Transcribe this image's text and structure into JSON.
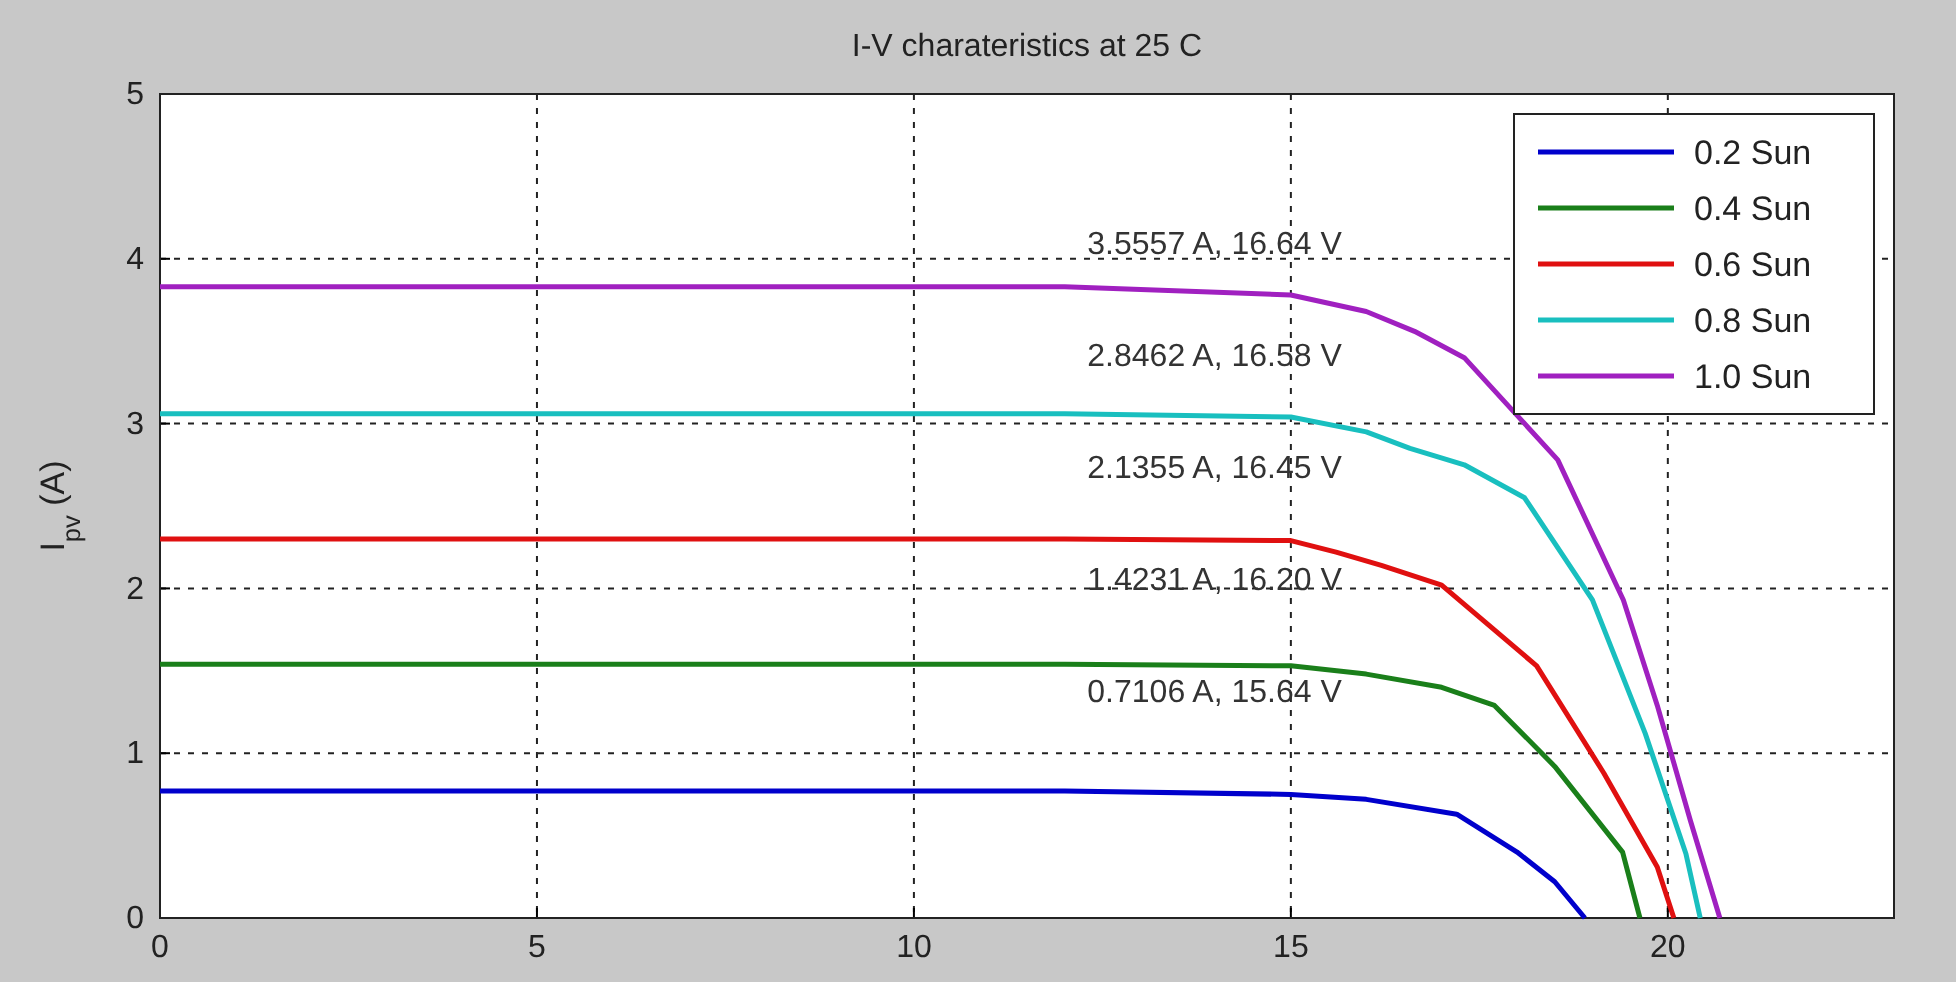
{
  "chart_data": {
    "type": "line",
    "title": "I-V charateristics at 25 C",
    "ylabel": "I$_{pv}$ (A)",
    "xlim": [
      0,
      23
    ],
    "xticks": [
      0,
      5,
      10,
      15,
      20
    ],
    "ylim": [
      0,
      5
    ],
    "yticks": [
      0,
      1,
      2,
      3,
      4,
      5
    ],
    "grid": true,
    "legend": "top right",
    "line_style": "solid",
    "marker": "none",
    "series": [
      {
        "name": "0.2 Sun",
        "color": "#0000cc",
        "x": [
          0,
          5,
          10,
          12,
          15,
          16,
          17.2,
          18,
          18.5,
          18.9
        ],
        "values": [
          0.77,
          0.77,
          0.77,
          0.77,
          0.75,
          0.72,
          0.63,
          0.4,
          0.22,
          0
        ]
      },
      {
        "name": "0.4 Sun",
        "color": "#1a7f1a",
        "x": [
          0,
          5,
          10,
          12,
          15,
          16,
          17,
          17.7,
          18.5,
          19.4,
          19.63
        ],
        "values": [
          1.54,
          1.54,
          1.54,
          1.54,
          1.53,
          1.48,
          1.4,
          1.29,
          0.92,
          0.4,
          0
        ]
      },
      {
        "name": "0.6 Sun",
        "color": "#e01010",
        "x": [
          0,
          5,
          10,
          12,
          15,
          15.6,
          16.2,
          17,
          18.26,
          19.15,
          19.86,
          20.08
        ],
        "values": [
          2.3,
          2.3,
          2.3,
          2.3,
          2.29,
          2.22,
          2.14,
          2.02,
          1.53,
          0.88,
          0.31,
          0
        ]
      },
      {
        "name": "0.8 Sun",
        "color": "#19bfbf",
        "x": [
          0,
          5,
          10,
          12,
          15,
          16,
          16.58,
          17.3,
          18.1,
          19,
          19.7,
          20.24,
          20.43
        ],
        "values": [
          3.06,
          3.06,
          3.06,
          3.06,
          3.04,
          2.95,
          2.85,
          2.75,
          2.55,
          1.93,
          1.12,
          0.39,
          0
        ]
      },
      {
        "name": "1.0 Sun",
        "color": "#a020c0",
        "x": [
          0,
          5,
          10,
          12,
          15,
          16,
          16.64,
          17.3,
          18.54,
          19.41,
          19.86,
          20.3,
          20.69
        ],
        "values": [
          3.83,
          3.83,
          3.83,
          3.83,
          3.78,
          3.68,
          3.56,
          3.4,
          2.78,
          1.93,
          1.29,
          0.59,
          0
        ]
      }
    ],
    "annotations": [
      "3.5557 A, 16.64 V",
      "2.8462 A, 16.58 V",
      "2.1355 A, 16.45 V",
      "1.4231 A, 16.20 V",
      "0.7106 A, 15.64 V"
    ]
  }
}
